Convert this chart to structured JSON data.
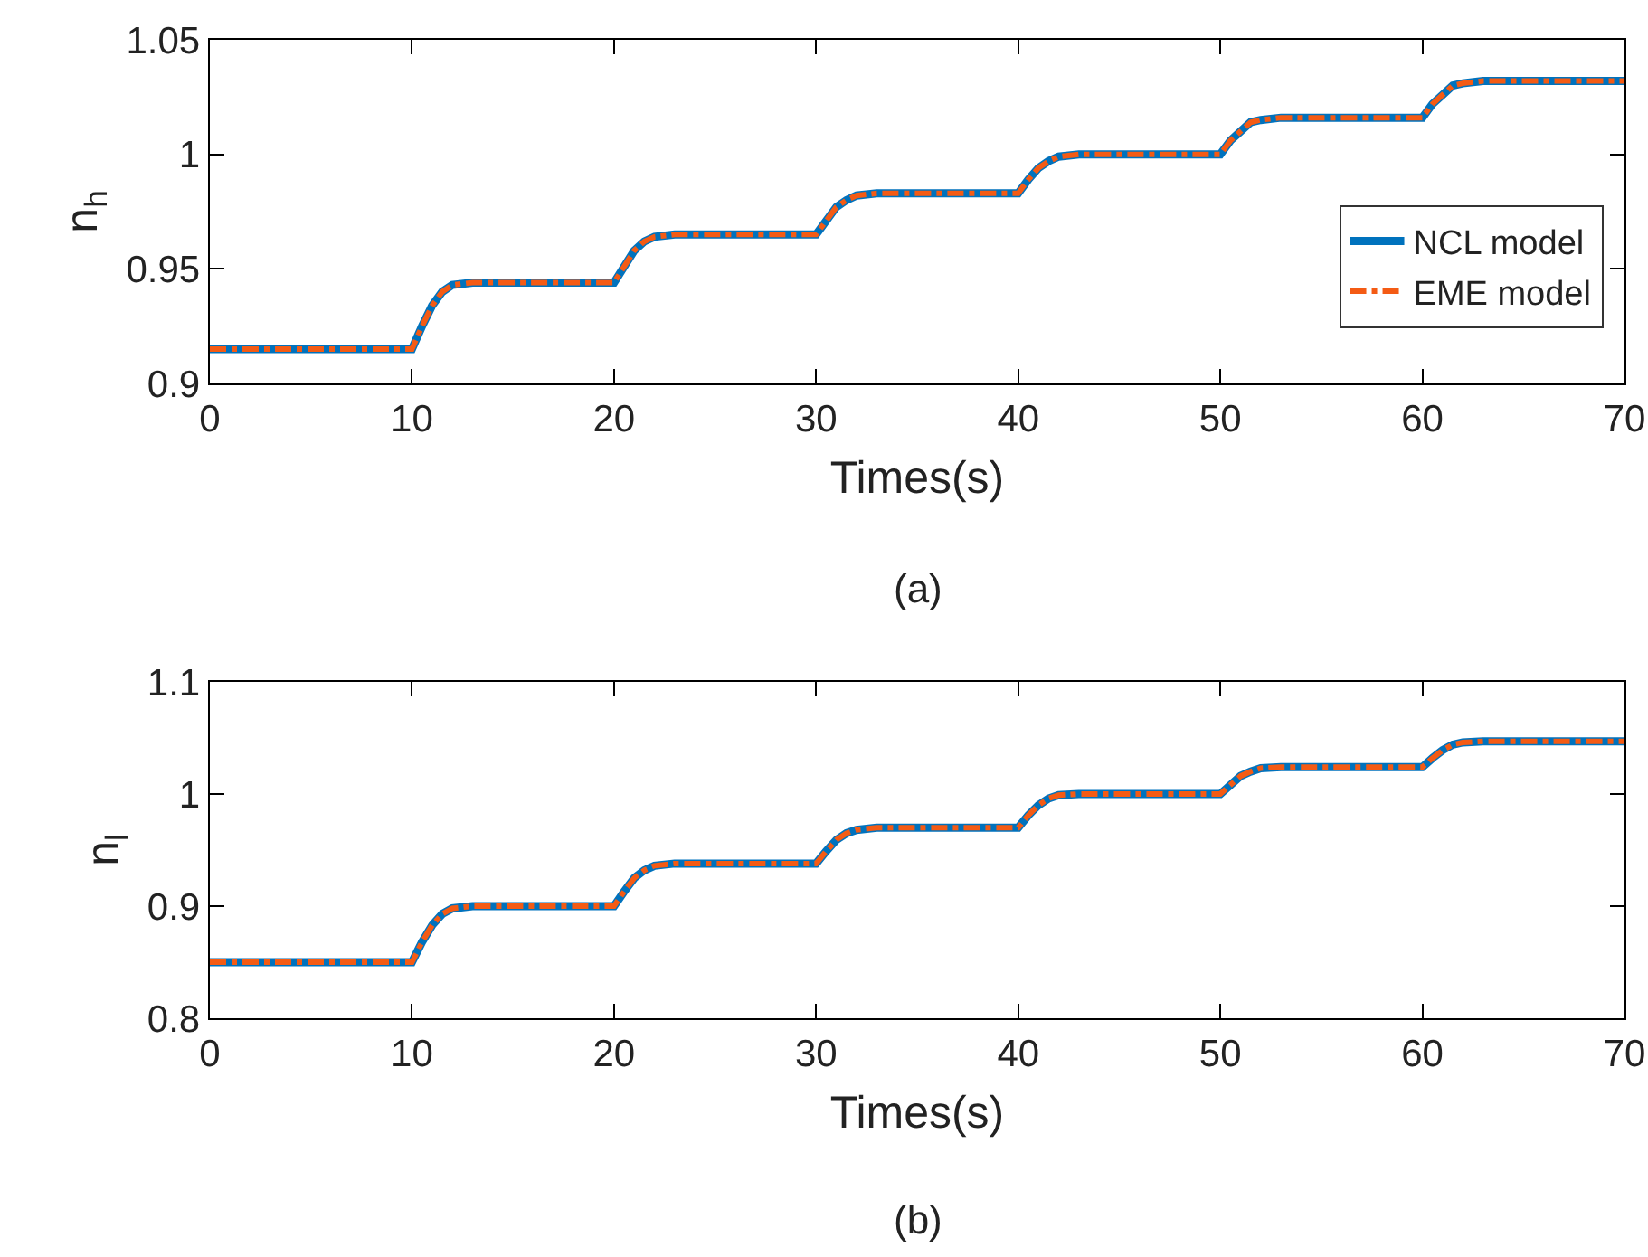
{
  "chart_data": [
    {
      "type": "line",
      "xlabel": "Times(s)",
      "ylabel": "n$_{h}$",
      "annotations": [
        "(a)"
      ],
      "legend": "right",
      "x": [
        0,
        10,
        10.5,
        11,
        11.5,
        12,
        13,
        20,
        20.5,
        21,
        21.5,
        22,
        23,
        30,
        30.5,
        31,
        31.5,
        32,
        33,
        40,
        40.5,
        41,
        41.5,
        42,
        43,
        50,
        50.5,
        51,
        51.5,
        52,
        53,
        60,
        60.5,
        61,
        61.5,
        62,
        63,
        70
      ],
      "series": [
        {
          "name": "NCL model",
          "color": "#0072bd",
          "line_style": "solid",
          "values": [
            0.915,
            0.915,
            0.925,
            0.934,
            0.94,
            0.943,
            0.944,
            0.944,
            0.951,
            0.958,
            0.962,
            0.964,
            0.965,
            0.965,
            0.971,
            0.977,
            0.98,
            0.982,
            0.983,
            0.983,
            0.989,
            0.994,
            0.997,
            0.999,
            1.0,
            1.0,
            1.006,
            1.01,
            1.014,
            1.015,
            1.016,
            1.016,
            1.022,
            1.026,
            1.03,
            1.031,
            1.032,
            1.032
          ]
        },
        {
          "name": "EME model",
          "color": "#f45b14",
          "line_style": "dashed",
          "values": [
            0.915,
            0.915,
            0.925,
            0.934,
            0.94,
            0.943,
            0.944,
            0.944,
            0.951,
            0.958,
            0.962,
            0.964,
            0.965,
            0.965,
            0.971,
            0.977,
            0.98,
            0.982,
            0.983,
            0.983,
            0.989,
            0.994,
            0.997,
            0.999,
            1.0,
            1.0,
            1.006,
            1.01,
            1.014,
            1.015,
            1.016,
            1.016,
            1.022,
            1.026,
            1.03,
            1.031,
            1.032,
            1.032
          ]
        }
      ],
      "xlim": [
        0,
        70
      ],
      "xticks": [
        0,
        10,
        20,
        30,
        40,
        50,
        60,
        70
      ],
      "ylim": [
        0.9,
        1.05
      ],
      "yticks": [
        0.9,
        0.95,
        1,
        1.05
      ]
    },
    {
      "type": "line",
      "xlabel": "Times(s)",
      "ylabel": "n$_{l}$",
      "annotations": [
        "(b)"
      ],
      "x": [
        0,
        10,
        10.5,
        11,
        11.5,
        12,
        13,
        20,
        20.5,
        21,
        21.5,
        22,
        23,
        30,
        30.5,
        31,
        31.5,
        32,
        33,
        40,
        40.5,
        41,
        41.5,
        42,
        43,
        50,
        50.5,
        51,
        51.5,
        52,
        53,
        60,
        60.5,
        61,
        61.5,
        62,
        63,
        70
      ],
      "series": [
        {
          "color": "#0072bd",
          "line_style": "solid",
          "values": [
            0.85,
            0.85,
            0.868,
            0.883,
            0.893,
            0.898,
            0.9,
            0.9,
            0.913,
            0.925,
            0.932,
            0.936,
            0.938,
            0.938,
            0.949,
            0.959,
            0.965,
            0.968,
            0.97,
            0.97,
            0.981,
            0.99,
            0.996,
            0.999,
            1.0,
            1.0,
            1.008,
            1.016,
            1.02,
            1.023,
            1.024,
            1.024,
            1.032,
            1.039,
            1.044,
            1.046,
            1.047,
            1.047
          ]
        },
        {
          "color": "#f45b14",
          "line_style": "dashed",
          "values": [
            0.85,
            0.85,
            0.868,
            0.883,
            0.893,
            0.898,
            0.9,
            0.9,
            0.913,
            0.925,
            0.932,
            0.936,
            0.938,
            0.938,
            0.949,
            0.959,
            0.965,
            0.968,
            0.97,
            0.97,
            0.981,
            0.99,
            0.996,
            0.999,
            1.0,
            1.0,
            1.008,
            1.016,
            1.02,
            1.023,
            1.024,
            1.024,
            1.032,
            1.039,
            1.044,
            1.046,
            1.047,
            1.047
          ]
        }
      ],
      "xlim": [
        0,
        70
      ],
      "xticks": [
        0,
        10,
        20,
        30,
        40,
        50,
        60,
        70
      ],
      "ylim": [
        0.8,
        1.1
      ],
      "yticks": [
        0.8,
        0.9,
        1,
        1.1
      ]
    }
  ]
}
